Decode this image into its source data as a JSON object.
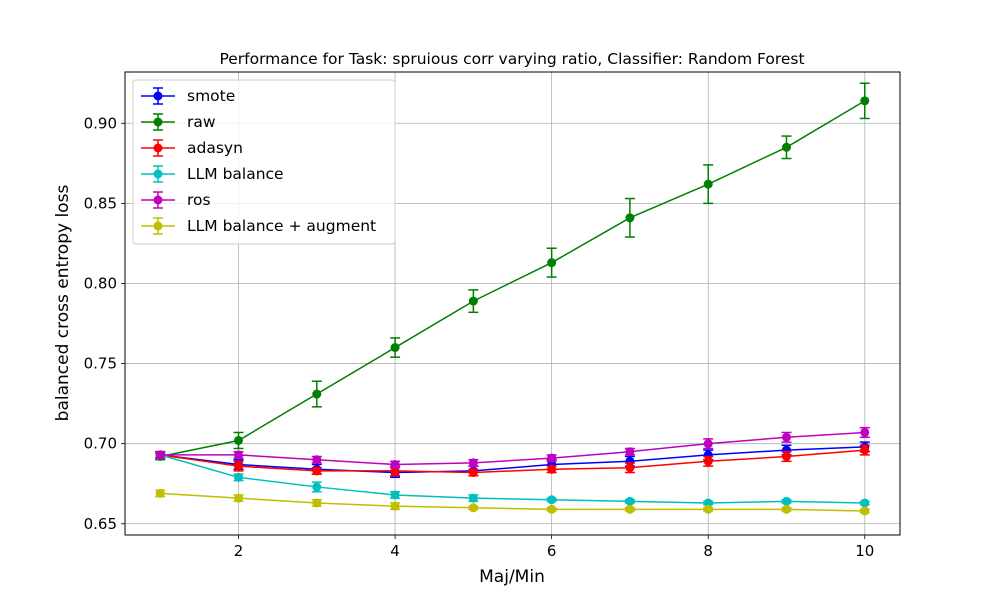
{
  "chart_data": {
    "type": "line",
    "title": "Performance for Task: spruious corr varying ratio, Classifier: Random Forest",
    "xlabel": "Maj/Min",
    "ylabel": "balanced cross entropy loss",
    "xlim": [
      0.55,
      10.45
    ],
    "ylim": [
      0.643,
      0.932
    ],
    "xticks": [
      2,
      4,
      6,
      8,
      10
    ],
    "yticks": [
      0.65,
      0.7,
      0.75,
      0.8,
      0.85,
      0.9
    ],
    "xtick_labels": [
      "2",
      "4",
      "6",
      "8",
      "10"
    ],
    "ytick_labels": [
      "0.65",
      "0.70",
      "0.75",
      "0.80",
      "0.85",
      "0.90"
    ],
    "grid": true,
    "legend_position": "top-left",
    "x": [
      1,
      2,
      3,
      4,
      5,
      6,
      7,
      8,
      9,
      10
    ],
    "series": [
      {
        "name": "smote",
        "color": "#0000ff",
        "values": [
          0.693,
          0.687,
          0.684,
          0.682,
          0.683,
          0.687,
          0.689,
          0.693,
          0.696,
          0.698
        ],
        "errors": [
          0.002,
          0.003,
          0.003,
          0.003,
          0.003,
          0.003,
          0.003,
          0.003,
          0.003,
          0.003
        ]
      },
      {
        "name": "raw",
        "color": "#008000",
        "values": [
          0.692,
          0.702,
          0.731,
          0.76,
          0.789,
          0.813,
          0.841,
          0.862,
          0.885,
          0.914
        ],
        "errors": [
          0.002,
          0.005,
          0.008,
          0.006,
          0.007,
          0.009,
          0.012,
          0.012,
          0.007,
          0.011
        ]
      },
      {
        "name": "adasyn",
        "color": "#ff0000",
        "values": [
          0.693,
          0.686,
          0.683,
          0.683,
          0.682,
          0.684,
          0.685,
          0.689,
          0.692,
          0.696
        ],
        "errors": [
          0.002,
          0.003,
          0.002,
          0.003,
          0.002,
          0.002,
          0.003,
          0.003,
          0.003,
          0.003
        ]
      },
      {
        "name": "LLM balance",
        "color": "#00bfbf",
        "values": [
          0.693,
          0.679,
          0.673,
          0.668,
          0.666,
          0.665,
          0.664,
          0.663,
          0.664,
          0.663
        ],
        "errors": [
          0.002,
          0.002,
          0.003,
          0.002,
          0.002,
          0.001,
          0.001,
          0.001,
          0.001,
          0.001
        ]
      },
      {
        "name": "ros",
        "color": "#bf00bf",
        "values": [
          0.693,
          0.693,
          0.69,
          0.687,
          0.688,
          0.691,
          0.695,
          0.7,
          0.704,
          0.707
        ],
        "errors": [
          0.002,
          0.002,
          0.002,
          0.002,
          0.002,
          0.002,
          0.002,
          0.003,
          0.003,
          0.003
        ]
      },
      {
        "name": "LLM balance + augment",
        "color": "#bfbf00",
        "values": [
          0.669,
          0.666,
          0.663,
          0.661,
          0.66,
          0.659,
          0.659,
          0.659,
          0.659,
          0.658
        ],
        "errors": [
          0.002,
          0.002,
          0.002,
          0.002,
          0.001,
          0.001,
          0.001,
          0.001,
          0.001,
          0.001
        ]
      }
    ]
  }
}
